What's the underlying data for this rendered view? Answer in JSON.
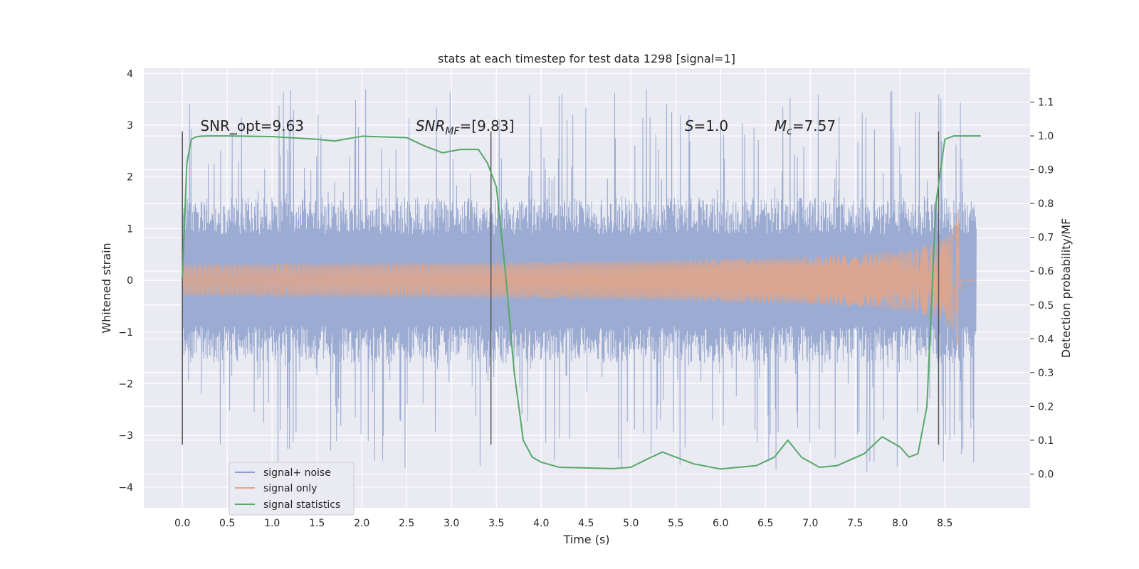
{
  "chart_data": {
    "type": "line",
    "title": "stats at each timestep for test data 1298 [signal=1]",
    "xlabel": "Time (s)",
    "ylabel": "Whitened strain",
    "y2label": "Detection probability/MF",
    "xlim": [
      -0.43,
      9.45
    ],
    "ylim": [
      -4.4,
      4.1
    ],
    "y2lim": [
      -0.1,
      1.2
    ],
    "xticks": [
      "0.0",
      "0.5",
      "1.0",
      "1.5",
      "2.0",
      "2.5",
      "3.0",
      "3.5",
      "4.0",
      "4.5",
      "5.0",
      "5.5",
      "6.0",
      "6.5",
      "7.0",
      "7.5",
      "8.0",
      "8.5"
    ],
    "yticks": [
      "4",
      "3",
      "2",
      "1",
      "0",
      "−1",
      "−2",
      "−3",
      "−4"
    ],
    "y2ticks": [
      "0.0",
      "0.1",
      "0.2",
      "0.3",
      "0.4",
      "0.5",
      "0.6",
      "0.7",
      "0.8",
      "0.9",
      "1.0",
      "1.1"
    ],
    "legend_position": "lower-left",
    "grid": true,
    "annotations": [
      {
        "text": "SNR_opt=9.63",
        "x": 0.2
      },
      {
        "text": "SNR_MF=[9.83]",
        "x": 2.6
      },
      {
        "text": "S=1.0",
        "x": 5.6
      },
      {
        "text": "M_c=7.57",
        "x": 6.6
      }
    ],
    "vlines": [
      0.0,
      3.44,
      8.43
    ],
    "series": [
      {
        "name": "signal+ noise",
        "color": "#8da0cb",
        "noise_band": {
          "x_start": 0.0,
          "x_end": 8.85,
          "typical_amplitude": 1.6,
          "peak_max": 3.7,
          "peak_min": -4.0
        }
      },
      {
        "name": "signal only",
        "color": "#e1a58a",
        "chirp": {
          "x_start": 0.0,
          "merger_x": 8.65,
          "end_x": 8.85,
          "peak_amplitude": 1.4
        }
      },
      {
        "name": "signal statistics",
        "color": "#55a868",
        "axis": "right",
        "x": [
          0.0,
          0.05,
          0.1,
          0.15,
          0.2,
          0.3,
          0.5,
          1.0,
          1.5,
          1.7,
          2.0,
          2.5,
          2.7,
          2.9,
          3.1,
          3.3,
          3.4,
          3.5,
          3.6,
          3.7,
          3.8,
          3.9,
          4.0,
          4.2,
          4.5,
          4.8,
          5.0,
          5.15,
          5.35,
          5.5,
          5.7,
          6.0,
          6.4,
          6.6,
          6.75,
          6.9,
          7.1,
          7.3,
          7.6,
          7.8,
          8.0,
          8.1,
          8.2,
          8.3,
          8.4,
          8.5,
          8.6,
          8.9
        ],
        "values": [
          0.58,
          0.92,
          0.99,
          0.997,
          0.999,
          1.0,
          1.0,
          0.998,
          0.99,
          0.985,
          0.999,
          0.995,
          0.97,
          0.95,
          0.96,
          0.96,
          0.92,
          0.85,
          0.6,
          0.3,
          0.1,
          0.05,
          0.035,
          0.02,
          0.018,
          0.016,
          0.02,
          0.04,
          0.065,
          0.05,
          0.03,
          0.015,
          0.025,
          0.05,
          0.1,
          0.05,
          0.02,
          0.025,
          0.06,
          0.11,
          0.08,
          0.05,
          0.06,
          0.2,
          0.8,
          0.99,
          1.0,
          1.0
        ]
      }
    ]
  }
}
